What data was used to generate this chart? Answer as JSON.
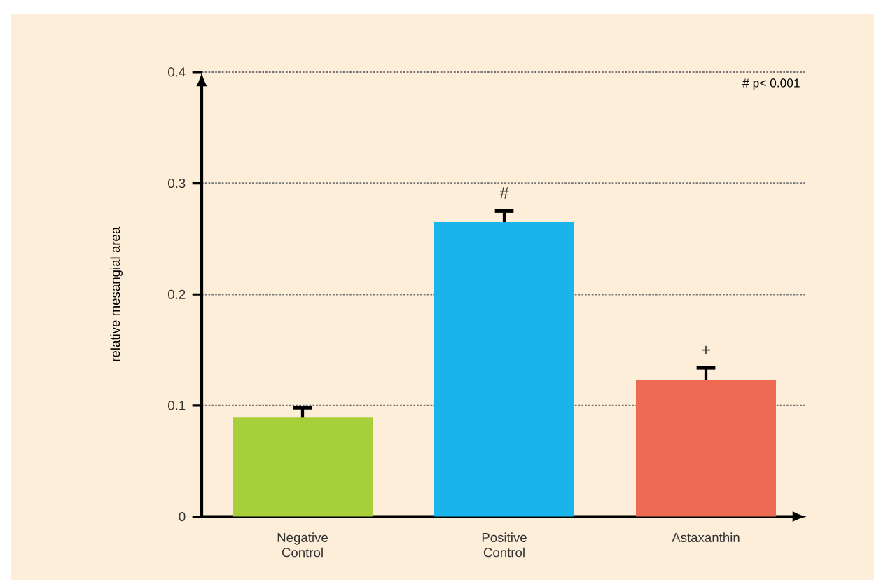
{
  "chart_data": {
    "type": "bar",
    "categories": [
      "Negative\nControl",
      "Positive\nControl",
      "Astaxanthin"
    ],
    "values": [
      0.089,
      0.265,
      0.123
    ],
    "errors": [
      [
        0.089,
        0.098
      ],
      [
        0.265,
        0.275
      ],
      [
        0.123,
        0.134
      ]
    ],
    "colors": [
      "#a6cf3a",
      "#1ab4ec",
      "#ef6a52"
    ],
    "ylabel": "relative mesangial area",
    "ylim": [
      0,
      0.4
    ],
    "yticks": [
      0,
      0.1,
      0.2,
      0.3,
      0.4
    ],
    "grid": "y",
    "annotations": [
      "# p< 0.001",
      "#",
      "+"
    ]
  }
}
